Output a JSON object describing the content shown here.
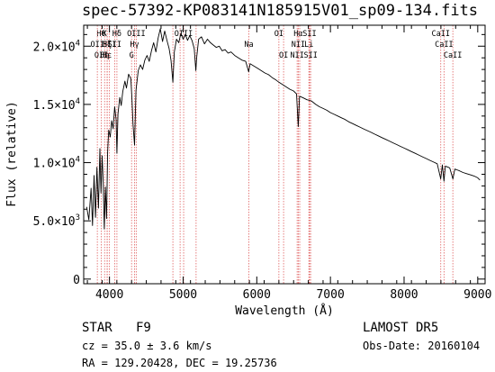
{
  "chart_data": {
    "type": "line",
    "title": "spec-57392-KP083141N185915V01_sp09-134.fits",
    "xlabel": "Wavelength (Å)",
    "ylabel": "Flux (relative)",
    "xlim": [
      3650,
      9100
    ],
    "ylim": [
      -400,
      21800
    ],
    "x_ticks": [
      {
        "value": 4000,
        "label": "4000"
      },
      {
        "value": 5000,
        "label": "5000"
      },
      {
        "value": 6000,
        "label": "6000"
      },
      {
        "value": 7000,
        "label": "7000"
      },
      {
        "value": 8000,
        "label": "8000"
      },
      {
        "value": 9000,
        "label": "9000"
      }
    ],
    "y_ticks": [
      {
        "value": 0,
        "mant": "0",
        "exp": ""
      },
      {
        "value": 5000,
        "mant": "5.0×10",
        "exp": "3"
      },
      {
        "value": 10000,
        "mant": "1.0×10",
        "exp": "4"
      },
      {
        "value": 15000,
        "mant": "1.5×10",
        "exp": "4"
      },
      {
        "value": 20000,
        "mant": "2.0×10",
        "exp": "4"
      }
    ],
    "grid": false,
    "line_color": "#000000",
    "series": [
      {
        "points": [
          [
            3690,
            6200
          ],
          [
            3720,
            5100
          ],
          [
            3750,
            7800
          ],
          [
            3770,
            4600
          ],
          [
            3790,
            8900
          ],
          [
            3810,
            5300
          ],
          [
            3830,
            9600
          ],
          [
            3850,
            6100
          ],
          [
            3870,
            11200
          ],
          [
            3885,
            7400
          ],
          [
            3900,
            10600
          ],
          [
            3915,
            8200
          ],
          [
            3930,
            4300
          ],
          [
            3945,
            7900
          ],
          [
            3960,
            5200
          ],
          [
            3975,
            10900
          ],
          [
            3990,
            12800
          ],
          [
            4010,
            12200
          ],
          [
            4030,
            13600
          ],
          [
            4050,
            12900
          ],
          [
            4070,
            14800
          ],
          [
            4090,
            13700
          ],
          [
            4101,
            10800
          ],
          [
            4115,
            14200
          ],
          [
            4140,
            15600
          ],
          [
            4160,
            14900
          ],
          [
            4180,
            16100
          ],
          [
            4210,
            17000
          ],
          [
            4230,
            16400
          ],
          [
            4260,
            17600
          ],
          [
            4290,
            17200
          ],
          [
            4305,
            15500
          ],
          [
            4320,
            13300
          ],
          [
            4340,
            11500
          ],
          [
            4360,
            16200
          ],
          [
            4390,
            17900
          ],
          [
            4420,
            18400
          ],
          [
            4450,
            18000
          ],
          [
            4480,
            18800
          ],
          [
            4510,
            19200
          ],
          [
            4540,
            18700
          ],
          [
            4570,
            19600
          ],
          [
            4600,
            20300
          ],
          [
            4630,
            19500
          ],
          [
            4660,
            20700
          ],
          [
            4690,
            21500
          ],
          [
            4720,
            20400
          ],
          [
            4750,
            21300
          ],
          [
            4780,
            20500
          ],
          [
            4810,
            19800
          ],
          [
            4835,
            18800
          ],
          [
            4861,
            16900
          ],
          [
            4880,
            19500
          ],
          [
            4910,
            20600
          ],
          [
            4940,
            20300
          ],
          [
            4970,
            21100
          ],
          [
            5000,
            20600
          ],
          [
            5030,
            21000
          ],
          [
            5060,
            20500
          ],
          [
            5090,
            20900
          ],
          [
            5120,
            20500
          ],
          [
            5150,
            19800
          ],
          [
            5172,
            17900
          ],
          [
            5183,
            19000
          ],
          [
            5210,
            20600
          ],
          [
            5250,
            20800
          ],
          [
            5290,
            20200
          ],
          [
            5330,
            20600
          ],
          [
            5370,
            20300
          ],
          [
            5410,
            20100
          ],
          [
            5450,
            19900
          ],
          [
            5490,
            20000
          ],
          [
            5530,
            19600
          ],
          [
            5570,
            19700
          ],
          [
            5610,
            19400
          ],
          [
            5650,
            19500
          ],
          [
            5700,
            19200
          ],
          [
            5750,
            19000
          ],
          [
            5800,
            18800
          ],
          [
            5850,
            18700
          ],
          [
            5890,
            17800
          ],
          [
            5910,
            18500
          ],
          [
            5960,
            18300
          ],
          [
            6010,
            18100
          ],
          [
            6060,
            17900
          ],
          [
            6110,
            17700
          ],
          [
            6160,
            17550
          ],
          [
            6210,
            17300
          ],
          [
            6260,
            17100
          ],
          [
            6300,
            16900
          ],
          [
            6350,
            16700
          ],
          [
            6400,
            16500
          ],
          [
            6450,
            16300
          ],
          [
            6500,
            16150
          ],
          [
            6540,
            15900
          ],
          [
            6563,
            13100
          ],
          [
            6580,
            15700
          ],
          [
            6620,
            15600
          ],
          [
            6680,
            15400
          ],
          [
            6740,
            15300
          ],
          [
            6800,
            15000
          ],
          [
            6850,
            14800
          ],
          [
            6900,
            14650
          ],
          [
            6950,
            14500
          ],
          [
            7000,
            14300
          ],
          [
            7050,
            14150
          ],
          [
            7100,
            14000
          ],
          [
            7150,
            13850
          ],
          [
            7200,
            13700
          ],
          [
            7250,
            13500
          ],
          [
            7300,
            13350
          ],
          [
            7350,
            13200
          ],
          [
            7400,
            13050
          ],
          [
            7450,
            12900
          ],
          [
            7500,
            12750
          ],
          [
            7550,
            12600
          ],
          [
            7600,
            12450
          ],
          [
            7650,
            12300
          ],
          [
            7700,
            12150
          ],
          [
            7750,
            12000
          ],
          [
            7800,
            11850
          ],
          [
            7850,
            11700
          ],
          [
            7900,
            11550
          ],
          [
            7950,
            11400
          ],
          [
            8000,
            11250
          ],
          [
            8050,
            11100
          ],
          [
            8100,
            10950
          ],
          [
            8150,
            10800
          ],
          [
            8200,
            10650
          ],
          [
            8250,
            10500
          ],
          [
            8300,
            10350
          ],
          [
            8350,
            10200
          ],
          [
            8400,
            10050
          ],
          [
            8450,
            9900
          ],
          [
            8498,
            8600
          ],
          [
            8520,
            9800
          ],
          [
            8542,
            8400
          ],
          [
            8560,
            9700
          ],
          [
            8600,
            9600
          ],
          [
            8620,
            9550
          ],
          [
            8662,
            8600
          ],
          [
            8690,
            9450
          ],
          [
            8750,
            9300
          ],
          [
            8800,
            9150
          ],
          [
            8850,
            9050
          ],
          [
            8900,
            8950
          ],
          [
            8950,
            8850
          ],
          [
            9000,
            8700
          ],
          [
            9030,
            8500
          ]
        ]
      }
    ],
    "lines": [
      {
        "x": 3934,
        "labels": [
          {
            "text": "K",
            "row": 0
          },
          {
            "text": "Hη",
            "row": 2
          }
        ]
      },
      {
        "x": 3968,
        "labels": [
          {
            "text": "Hζ",
            "row": 1
          }
        ]
      },
      {
        "x": 3889,
        "labels": [
          {
            "text": "Hθ",
            "row": 0
          },
          {
            "text": "OII",
            "row": 2
          }
        ]
      },
      {
        "x": 3835,
        "labels": [
          {
            "text": "OII",
            "row": 1
          }
        ]
      },
      {
        "x": 3970,
        "labels": [
          {
            "text": "Hε",
            "row": 2
          }
        ]
      },
      {
        "x": 4000,
        "labels": [
          {
            "text": "SII",
            "row": 1
          }
        ]
      },
      {
        "x": 4101,
        "labels": [
          {
            "text": "Hδ",
            "row": 0
          }
        ]
      },
      {
        "x": 4070,
        "labels": [
          {
            "text": "SII",
            "row": 1
          }
        ]
      },
      {
        "x": 4300,
        "labels": [
          {
            "text": "G",
            "row": 2
          }
        ]
      },
      {
        "x": 4340,
        "labels": [
          {
            "text": "Hγ",
            "row": 1
          }
        ]
      },
      {
        "x": 4363,
        "labels": [
          {
            "text": "OIII",
            "row": 0
          }
        ]
      },
      {
        "x": 4861,
        "labels": []
      },
      {
        "x": 4959,
        "labels": []
      },
      {
        "x": 5007,
        "labels": [
          {
            "text": "OIII",
            "row": 0
          }
        ]
      },
      {
        "x": 5176,
        "labels": []
      },
      {
        "x": 5893,
        "labels": [
          {
            "text": "Na",
            "row": 1
          }
        ]
      },
      {
        "x": 6300,
        "labels": [
          {
            "text": "OI",
            "row": 0
          }
        ]
      },
      {
        "x": 6364,
        "labels": [
          {
            "text": "OI",
            "row": 2
          }
        ]
      },
      {
        "x": 6548,
        "labels": [
          {
            "text": "NII",
            "row": 2
          }
        ]
      },
      {
        "x": 6563,
        "labels": [
          {
            "text": "Hα",
            "row": 0
          },
          {
            "text": "NII",
            "row": 1
          }
        ]
      },
      {
        "x": 6583,
        "labels": []
      },
      {
        "x": 6708,
        "labels": [
          {
            "text": "Li",
            "row": 1
          }
        ]
      },
      {
        "x": 6716,
        "labels": [
          {
            "text": "SII",
            "row": 0
          }
        ]
      },
      {
        "x": 6731,
        "labels": [
          {
            "text": "SII",
            "row": 2
          }
        ]
      },
      {
        "x": 8498,
        "labels": [
          {
            "text": "CaII",
            "row": 0
          }
        ]
      },
      {
        "x": 8542,
        "labels": [
          {
            "text": "CaII",
            "row": 1
          }
        ]
      },
      {
        "x": 8662,
        "labels": [
          {
            "text": "CaII",
            "row": 2
          }
        ]
      }
    ]
  },
  "info": {
    "objtype": "STAR",
    "subclass": "F9",
    "cz": "cz = 35.0 ± 3.6 km/s",
    "radec": "RA = 129.20428, DEC =  19.25736",
    "survey": "LAMOST DR5",
    "obsdate": "Obs-Date: 20160104"
  },
  "colors": {
    "line_marker": "#e06060",
    "frame": "#000000",
    "background": "#ffffff"
  }
}
